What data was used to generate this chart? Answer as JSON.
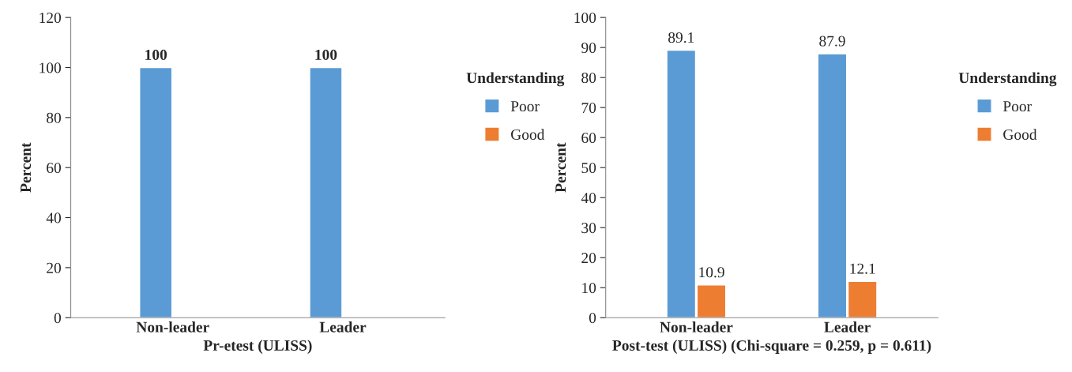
{
  "chart_data": [
    {
      "type": "bar",
      "categories": [
        "Non-leader",
        "Leader"
      ],
      "xlabel": "Pr-etest (ULISS)",
      "ylabel": "Percent",
      "legend_title": "Understanding",
      "legend": "right",
      "grid": false,
      "ylim": [
        0,
        120
      ],
      "yticks": [
        0,
        20,
        40,
        60,
        80,
        100,
        120
      ],
      "series": [
        {
          "name": "Poor",
          "color": "#5b9bd5",
          "values": [
            100,
            100
          ],
          "value_labels": [
            "100",
            "100"
          ]
        },
        {
          "name": "Good",
          "color": "#ed7d31",
          "values": [
            null,
            null
          ],
          "value_labels": [
            null,
            null
          ]
        }
      ]
    },
    {
      "type": "bar",
      "categories": [
        "Non-leader",
        "Leader"
      ],
      "xlabel": "Post-test (ULISS) (Chi-square = 0.259, p = 0.611)",
      "ylabel": "Percent",
      "legend_title": "Understanding",
      "legend": "right",
      "grid": false,
      "ylim": [
        0,
        100
      ],
      "yticks": [
        0,
        10,
        20,
        30,
        40,
        50,
        60,
        70,
        80,
        90,
        100
      ],
      "data_labels": true,
      "series": [
        {
          "name": "Poor",
          "color": "#5b9bd5",
          "values": [
            89.1,
            87.9
          ]
        },
        {
          "name": "Good",
          "color": "#ed7d31",
          "values": [
            10.9,
            12.1
          ]
        }
      ]
    }
  ]
}
